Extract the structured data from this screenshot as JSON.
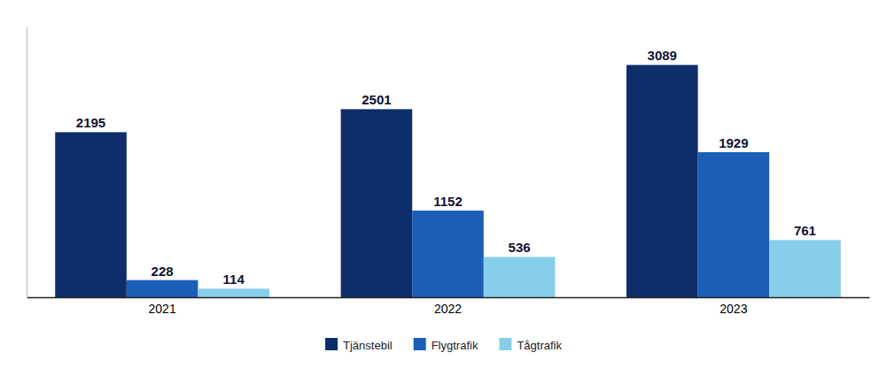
{
  "chart_data": {
    "type": "bar",
    "categories": [
      "2021",
      "2022",
      "2023"
    ],
    "series": [
      {
        "name": "Tjänstebil",
        "color": "#0d2d6b",
        "values": [
          2195,
          2501,
          3089
        ]
      },
      {
        "name": "Flygtrafik",
        "color": "#1a5eb8",
        "values": [
          228,
          1152,
          1929
        ]
      },
      {
        "name": "Tågtrafik",
        "color": "#87ceeb",
        "values": [
          114,
          536,
          761
        ]
      }
    ],
    "ylim": [
      0,
      3600
    ],
    "tick_labels": "x",
    "data_labels": true,
    "legend": "bottom",
    "grid": false
  }
}
